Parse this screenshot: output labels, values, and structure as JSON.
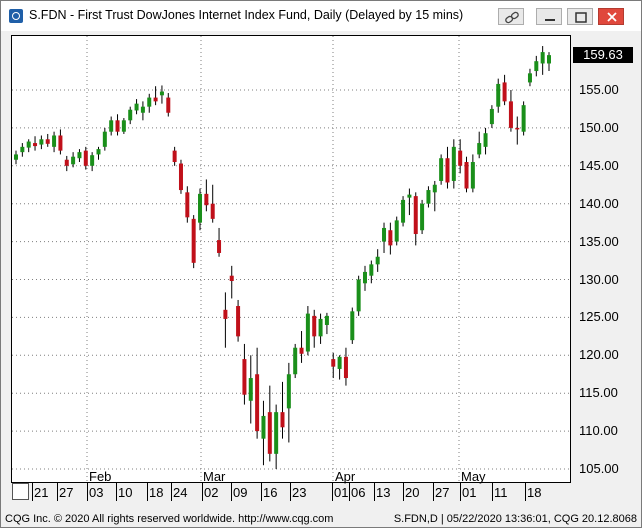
{
  "window": {
    "title": "S.FDN - First Trust DowJones Internet Index Fund, Daily (Delayed by 15 mins)"
  },
  "price_badge": "159.63",
  "y_axis_labels": [
    "155.00",
    "150.00",
    "145.00",
    "140.00",
    "135.00",
    "130.00",
    "125.00",
    "120.00",
    "115.00",
    "110.00",
    "105.00"
  ],
  "x_month_labels": [
    "Feb",
    "Mar",
    "Apr",
    "May"
  ],
  "x_tick_labels": [
    "21",
    "27",
    "03",
    "10",
    "18",
    "24",
    "02",
    "09",
    "16",
    "23",
    "01",
    "06",
    "13",
    "20",
    "27",
    "01",
    "11",
    "18"
  ],
  "statusbar": {
    "left": "CQG Inc. © 2020 All rights reserved worldwide. http://www.cqg.com",
    "right": "S.FDN,D | 05/22/2020 13:36:01, CQG 20.12.8068"
  },
  "colors": {
    "up": "#1a8f1a",
    "down": "#c0101a",
    "grid": "#7f7f7f"
  },
  "chart_data": {
    "type": "candlestick",
    "ylim": [
      103,
      162
    ],
    "grid": true,
    "candles": [
      {
        "o": 145.8,
        "h": 147.0,
        "l": 145.2,
        "c": 146.5
      },
      {
        "o": 146.8,
        "h": 148.0,
        "l": 146.2,
        "c": 147.5
      },
      {
        "o": 147.4,
        "h": 148.5,
        "l": 146.8,
        "c": 148.2
      },
      {
        "o": 148.0,
        "h": 148.9,
        "l": 147.0,
        "c": 147.6
      },
      {
        "o": 147.8,
        "h": 149.0,
        "l": 147.2,
        "c": 148.5
      },
      {
        "o": 148.5,
        "h": 149.2,
        "l": 147.5,
        "c": 147.9
      },
      {
        "o": 147.5,
        "h": 149.5,
        "l": 146.8,
        "c": 149.0
      },
      {
        "o": 149.0,
        "h": 149.8,
        "l": 146.5,
        "c": 147.0
      },
      {
        "o": 145.8,
        "h": 146.3,
        "l": 144.3,
        "c": 145.0
      },
      {
        "o": 145.2,
        "h": 146.8,
        "l": 144.8,
        "c": 146.2
      },
      {
        "o": 146.0,
        "h": 147.2,
        "l": 145.5,
        "c": 146.8
      },
      {
        "o": 147.0,
        "h": 147.5,
        "l": 144.5,
        "c": 145.0
      },
      {
        "o": 145.0,
        "h": 146.8,
        "l": 144.3,
        "c": 146.4
      },
      {
        "o": 146.5,
        "h": 147.5,
        "l": 145.8,
        "c": 147.2
      },
      {
        "o": 147.5,
        "h": 150.0,
        "l": 147.0,
        "c": 149.5
      },
      {
        "o": 149.5,
        "h": 151.5,
        "l": 149.0,
        "c": 151.0
      },
      {
        "o": 151.0,
        "h": 151.8,
        "l": 149.0,
        "c": 149.5
      },
      {
        "o": 149.5,
        "h": 151.3,
        "l": 149.2,
        "c": 151.0
      },
      {
        "o": 151.0,
        "h": 152.8,
        "l": 150.5,
        "c": 152.4
      },
      {
        "o": 152.3,
        "h": 153.8,
        "l": 151.8,
        "c": 153.2
      },
      {
        "o": 152.0,
        "h": 153.5,
        "l": 151.0,
        "c": 152.8
      },
      {
        "o": 152.8,
        "h": 154.5,
        "l": 152.0,
        "c": 154.0
      },
      {
        "o": 154.0,
        "h": 155.5,
        "l": 153.0,
        "c": 153.5
      },
      {
        "o": 154.3,
        "h": 155.6,
        "l": 153.2,
        "c": 154.8
      },
      {
        "o": 154.0,
        "h": 154.6,
        "l": 151.5,
        "c": 152.0
      },
      {
        "o": 147.0,
        "h": 147.5,
        "l": 145.0,
        "c": 145.5
      },
      {
        "o": 145.3,
        "h": 145.8,
        "l": 141.3,
        "c": 141.8
      },
      {
        "o": 141.5,
        "h": 142.3,
        "l": 137.5,
        "c": 138.2
      },
      {
        "o": 138.0,
        "h": 138.5,
        "l": 131.5,
        "c": 132.2
      },
      {
        "o": 137.5,
        "h": 142.0,
        "l": 136.5,
        "c": 141.3
      },
      {
        "o": 141.3,
        "h": 143.2,
        "l": 139.0,
        "c": 139.8
      },
      {
        "o": 140.0,
        "h": 142.5,
        "l": 137.5,
        "c": 138.0
      },
      {
        "o": 135.2,
        "h": 136.8,
        "l": 133.0,
        "c": 133.5
      },
      {
        "o": 126.0,
        "h": 128.3,
        "l": 121.0,
        "c": 124.8
      },
      {
        "o": 130.5,
        "h": 131.8,
        "l": 127.5,
        "c": 129.8
      },
      {
        "o": 126.5,
        "h": 127.3,
        "l": 121.8,
        "c": 122.5
      },
      {
        "o": 119.5,
        "h": 121.5,
        "l": 113.5,
        "c": 114.8
      },
      {
        "o": 114.0,
        "h": 120.0,
        "l": 111.0,
        "c": 117.0
      },
      {
        "o": 117.5,
        "h": 121.0,
        "l": 109.0,
        "c": 110.0
      },
      {
        "o": 109.0,
        "h": 114.0,
        "l": 105.5,
        "c": 112.0
      },
      {
        "o": 112.5,
        "h": 116.0,
        "l": 106.0,
        "c": 107.0
      },
      {
        "o": 107.0,
        "h": 113.5,
        "l": 105.0,
        "c": 112.5
      },
      {
        "o": 112.5,
        "h": 116.5,
        "l": 109.0,
        "c": 110.5
      },
      {
        "o": 113.0,
        "h": 119.0,
        "l": 108.5,
        "c": 117.5
      },
      {
        "o": 117.5,
        "h": 121.5,
        "l": 117.0,
        "c": 121.0
      },
      {
        "o": 121.0,
        "h": 123.2,
        "l": 119.0,
        "c": 120.2
      },
      {
        "o": 120.5,
        "h": 126.5,
        "l": 120.0,
        "c": 125.5
      },
      {
        "o": 125.2,
        "h": 126.0,
        "l": 121.0,
        "c": 122.5
      },
      {
        "o": 122.5,
        "h": 125.5,
        "l": 121.5,
        "c": 124.8
      },
      {
        "o": 124.0,
        "h": 125.6,
        "l": 122.8,
        "c": 125.2
      },
      {
        "o": 119.5,
        "h": 120.3,
        "l": 117.0,
        "c": 118.5
      },
      {
        "o": 118.2,
        "h": 120.0,
        "l": 116.8,
        "c": 119.8
      },
      {
        "o": 119.8,
        "h": 121.0,
        "l": 116.0,
        "c": 117.0
      },
      {
        "o": 122.0,
        "h": 126.3,
        "l": 121.5,
        "c": 125.8
      },
      {
        "o": 125.8,
        "h": 130.5,
        "l": 125.2,
        "c": 130.0
      },
      {
        "o": 129.5,
        "h": 131.8,
        "l": 128.5,
        "c": 131.0
      },
      {
        "o": 130.5,
        "h": 132.5,
        "l": 129.5,
        "c": 132.0
      },
      {
        "o": 132.0,
        "h": 134.0,
        "l": 131.0,
        "c": 133.0
      },
      {
        "o": 135.0,
        "h": 137.5,
        "l": 133.5,
        "c": 136.8
      },
      {
        "o": 136.5,
        "h": 137.5,
        "l": 133.3,
        "c": 134.5
      },
      {
        "o": 135.0,
        "h": 138.3,
        "l": 134.5,
        "c": 137.8
      },
      {
        "o": 137.5,
        "h": 141.0,
        "l": 137.0,
        "c": 140.5
      },
      {
        "o": 140.8,
        "h": 142.0,
        "l": 138.5,
        "c": 141.2
      },
      {
        "o": 141.0,
        "h": 141.5,
        "l": 134.5,
        "c": 136.0
      },
      {
        "o": 136.5,
        "h": 140.5,
        "l": 136.0,
        "c": 140.0
      },
      {
        "o": 140.0,
        "h": 142.3,
        "l": 139.5,
        "c": 141.8
      },
      {
        "o": 141.5,
        "h": 143.0,
        "l": 139.0,
        "c": 142.5
      },
      {
        "o": 143.0,
        "h": 146.5,
        "l": 142.5,
        "c": 146.0
      },
      {
        "o": 146.0,
        "h": 147.5,
        "l": 142.0,
        "c": 142.8
      },
      {
        "o": 143.0,
        "h": 148.5,
        "l": 142.0,
        "c": 147.5
      },
      {
        "o": 147.0,
        "h": 148.5,
        "l": 144.0,
        "c": 145.0
      },
      {
        "o": 145.5,
        "h": 146.2,
        "l": 141.5,
        "c": 142.0
      },
      {
        "o": 142.0,
        "h": 146.5,
        "l": 141.5,
        "c": 145.5
      },
      {
        "o": 146.5,
        "h": 149.5,
        "l": 146.0,
        "c": 148.0
      },
      {
        "o": 147.5,
        "h": 150.0,
        "l": 146.5,
        "c": 149.3
      },
      {
        "o": 150.5,
        "h": 153.0,
        "l": 150.0,
        "c": 152.5
      },
      {
        "o": 152.8,
        "h": 156.5,
        "l": 152.0,
        "c": 155.8
      },
      {
        "o": 156.0,
        "h": 157.0,
        "l": 153.0,
        "c": 153.5
      },
      {
        "o": 153.5,
        "h": 155.0,
        "l": 149.5,
        "c": 150.0
      },
      {
        "o": 150.0,
        "h": 151.5,
        "l": 147.8,
        "c": 149.8
      },
      {
        "o": 149.5,
        "h": 153.5,
        "l": 149.0,
        "c": 153.0
      },
      {
        "o": 156.0,
        "h": 157.8,
        "l": 155.5,
        "c": 157.2
      },
      {
        "o": 157.5,
        "h": 159.5,
        "l": 156.8,
        "c": 158.8
      },
      {
        "o": 158.5,
        "h": 160.8,
        "l": 157.0,
        "c": 160.0
      },
      {
        "o": 158.5,
        "h": 160.0,
        "l": 157.5,
        "c": 159.6
      }
    ]
  }
}
